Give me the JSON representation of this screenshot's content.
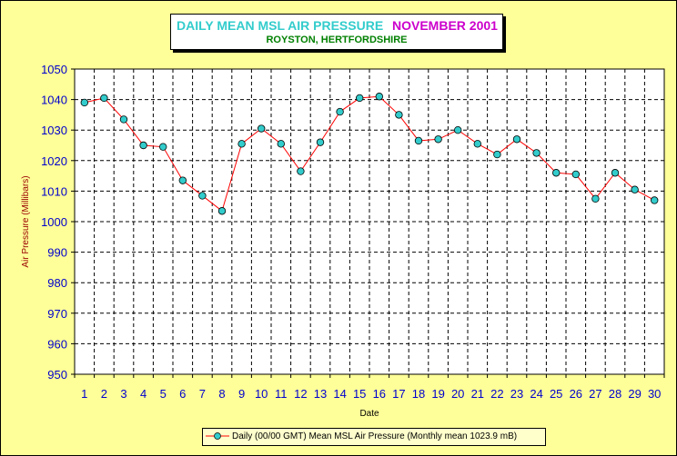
{
  "title": {
    "main": "DAILY MEAN MSL AIR PRESSURE",
    "month": "NOVEMBER 2001",
    "location": "ROYSTON, HERTFORDSHIRE"
  },
  "colors": {
    "background": "#ffff99",
    "title_main": "#33cccc",
    "title_month": "#cc00cc",
    "title_location": "#008000",
    "line": "#ff0000",
    "marker_fill": "#33cccc",
    "axis_text": "#0000cc",
    "ylabel_text": "#990000",
    "legend_bg": "#ffffcc"
  },
  "chart_data": {
    "type": "line",
    "title": "DAILY MEAN MSL AIR PRESSURE",
    "subtitle": "ROYSTON, HERTFORDSHIRE",
    "xlabel": "Date",
    "ylabel": "Air Pressure (Millibars)",
    "ylim": [
      950,
      1050
    ],
    "yticks": [
      950,
      960,
      970,
      980,
      990,
      1000,
      1010,
      1020,
      1030,
      1040,
      1050
    ],
    "grid": true,
    "legend_position": "bottom",
    "x": [
      1,
      2,
      3,
      4,
      5,
      6,
      7,
      8,
      9,
      10,
      11,
      12,
      13,
      14,
      15,
      16,
      17,
      18,
      19,
      20,
      21,
      22,
      23,
      24,
      25,
      26,
      27,
      28,
      29,
      30
    ],
    "series": [
      {
        "name": "Daily (00/00 GMT) Mean MSL Air Pressure (Monthly mean 1023.9 mB)",
        "values": [
          1039,
          1040.5,
          1033.5,
          1025,
          1024.5,
          1013.5,
          1008.5,
          1003.5,
          1025.5,
          1030.5,
          1025.5,
          1016.5,
          1026,
          1036,
          1040.5,
          1041,
          1035,
          1026.5,
          1027,
          1030,
          1025.5,
          1022,
          1027,
          1022.5,
          1016,
          1015.5,
          1007.5,
          1016,
          1010.5,
          1007
        ]
      }
    ]
  }
}
